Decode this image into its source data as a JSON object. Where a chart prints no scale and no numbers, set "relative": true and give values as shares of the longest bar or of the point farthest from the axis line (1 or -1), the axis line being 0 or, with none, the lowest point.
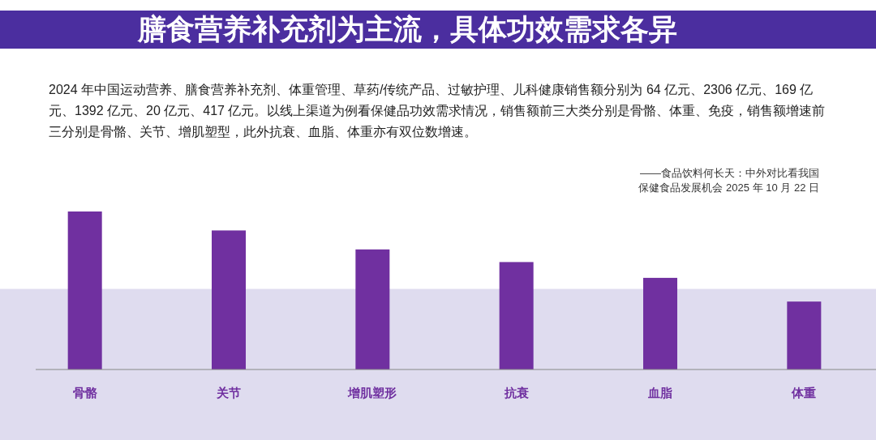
{
  "chart_data": {
    "type": "bar",
    "title": "膳食营养补充剂为主流，具体功效需求各异",
    "subtitle": "2024 年中国运动营养、膳食营养补充剂、体重管理、草药/传统产品、过敏护理、儿科健康销售额分别为 64 亿元、2306 亿元、169 亿元、1392 亿元、20 亿元、417 亿元。以线上渠道为例看保健品功效需求情况，销售额前三大类分别是骨骼、体重、免疫，销售额增速前三分别是骨骼、关节、增肌塑型，此外抗衰、血脂、体重亦有双位数增速。",
    "annotations": [
      "——食品饮料何长天：中外对比看我国保健食品发展机会 2025 年 10 月 22 日"
    ],
    "categories": [
      "骨骼",
      "关节",
      "增肌塑形",
      "抗衰",
      "血脂",
      "体重"
    ],
    "values": [
      1,
      0.88,
      0.76,
      0.68,
      0.58,
      0.43
    ],
    "color": "#7030a0",
    "bands": [
      {
        "axis": "y",
        "from": -0.45,
        "to": 0.51,
        "color": "#dfdcef"
      }
    ],
    "relative": true
  }
}
